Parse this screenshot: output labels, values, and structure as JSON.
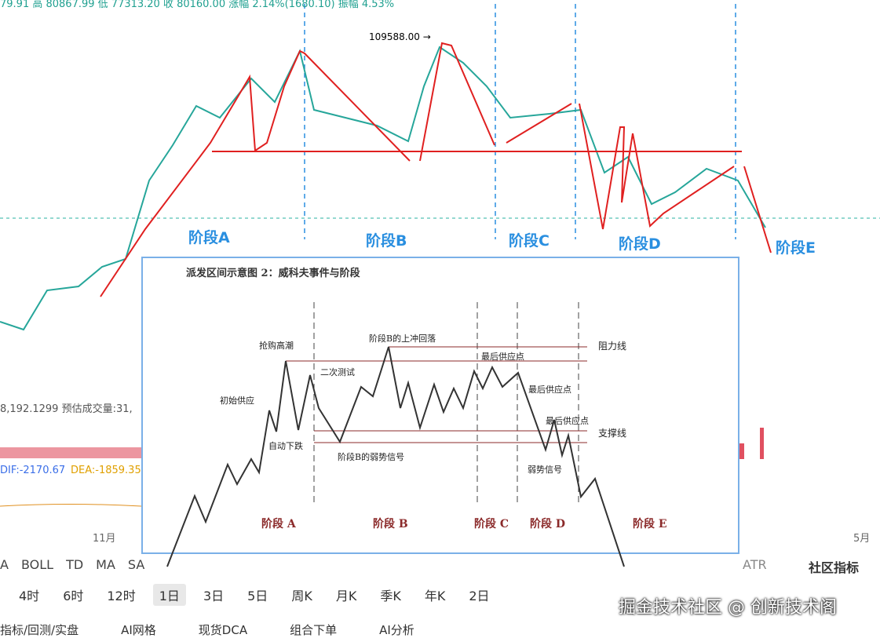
{
  "header": {
    "ohlc": "79.91 高 80867.99 低 77313.20 收 80160.00 涨幅 2.14%(1680.10) 振幅 4.53%"
  },
  "main_chart": {
    "high_label": "109588.00",
    "stages": [
      "阶段A",
      "阶段B",
      "阶段C",
      "阶段D",
      "阶段E"
    ],
    "volume_label": "8,192.1299 预估成交量:31,",
    "macd_dif": "DIF:-2170.67",
    "macd_dea": "DEA:-1859.35",
    "x_labels": [
      "11月",
      "5月"
    ]
  },
  "inset": {
    "title": "派发区间示意图 2：威科夫事件与阶段",
    "events": [
      "抢购高潮",
      "初始供应",
      "自动下跌",
      "二次测试",
      "阶段B的上冲回落",
      "阶段B的弱势信号",
      "最后供应点",
      "最后供应点",
      "最后供应点",
      "弱势信号"
    ],
    "lines": [
      "阻力线",
      "支撑线"
    ],
    "stages": [
      "阶段 A",
      "阶段 B",
      "阶段 C",
      "阶段 D",
      "阶段 E"
    ]
  },
  "indicators": {
    "left": [
      "A",
      "BOLL",
      "TD",
      "MA",
      "SA"
    ],
    "right": [
      "ATR",
      "社区指标"
    ]
  },
  "timeframes": [
    "4时",
    "6时",
    "12时",
    "1日",
    "3日",
    "5日",
    "周K",
    "月K",
    "季K",
    "年K",
    "2日"
  ],
  "bottom_tabs": [
    "指标/回测/实盘",
    "AI网格",
    "现货DCA",
    "组合下单",
    "AI分析"
  ],
  "watermark": "掘金技术社区 @ 创新技术阁"
}
